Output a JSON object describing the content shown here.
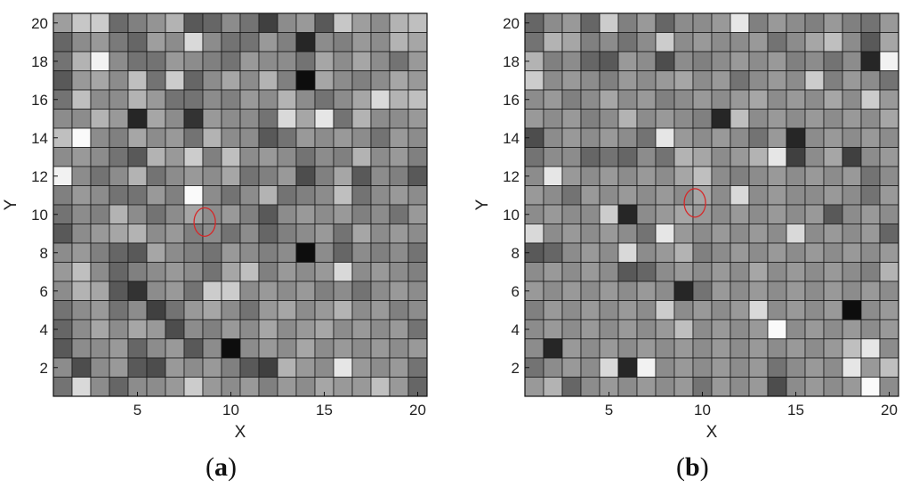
{
  "chart_data": [
    {
      "type": "heatmap",
      "panel_label": "a",
      "xlabel": "X",
      "ylabel": "Y",
      "xlim": [
        1,
        20
      ],
      "ylim": [
        1,
        20
      ],
      "x_ticks": [
        "5",
        "10",
        "15",
        "20"
      ],
      "y_ticks": [
        "2",
        "4",
        "6",
        "8",
        "10",
        "12",
        "14",
        "16",
        "18",
        "20"
      ],
      "colormap": "gray",
      "grid": true,
      "marker": {
        "shape": "circle",
        "color": "#d62728",
        "x": 8.6,
        "y": 9.6
      },
      "rows_top_to_bottom": [
        [
          0.62,
          0.78,
          0.8,
          0.42,
          0.5,
          0.58,
          0.7,
          0.35,
          0.4,
          0.55,
          0.45,
          0.25,
          0.55,
          0.6,
          0.35,
          0.78,
          0.62,
          0.55,
          0.7,
          0.75
        ],
        [
          0.4,
          0.55,
          0.6,
          0.48,
          0.4,
          0.62,
          0.55,
          0.85,
          0.55,
          0.45,
          0.45,
          0.6,
          0.5,
          0.15,
          0.55,
          0.5,
          0.6,
          0.55,
          0.7,
          0.65
        ],
        [
          0.45,
          0.7,
          0.95,
          0.55,
          0.45,
          0.45,
          0.6,
          0.55,
          0.5,
          0.45,
          0.6,
          0.55,
          0.55,
          0.45,
          0.65,
          0.55,
          0.65,
          0.55,
          0.45,
          0.6
        ],
        [
          0.35,
          0.6,
          0.65,
          0.55,
          0.75,
          0.45,
          0.8,
          0.4,
          0.55,
          0.65,
          0.55,
          0.7,
          0.5,
          0.05,
          0.65,
          0.55,
          0.5,
          0.55,
          0.65,
          0.6
        ],
        [
          0.45,
          0.75,
          0.55,
          0.55,
          0.7,
          0.6,
          0.45,
          0.45,
          0.55,
          0.5,
          0.6,
          0.55,
          0.7,
          0.55,
          0.45,
          0.55,
          0.65,
          0.85,
          0.7,
          0.75
        ],
        [
          0.55,
          0.55,
          0.7,
          0.6,
          0.15,
          0.65,
          0.55,
          0.2,
          0.6,
          0.55,
          0.55,
          0.45,
          0.85,
          0.65,
          0.9,
          0.45,
          0.7,
          0.55,
          0.55,
          0.6
        ],
        [
          0.75,
          0.98,
          0.55,
          0.5,
          0.65,
          0.55,
          0.6,
          0.45,
          0.7,
          0.55,
          0.55,
          0.35,
          0.45,
          0.6,
          0.55,
          0.6,
          0.55,
          0.45,
          0.6,
          0.55
        ],
        [
          0.55,
          0.6,
          0.55,
          0.45,
          0.35,
          0.7,
          0.6,
          0.8,
          0.5,
          0.75,
          0.55,
          0.6,
          0.55,
          0.45,
          0.55,
          0.5,
          0.7,
          0.55,
          0.6,
          0.5
        ],
        [
          0.95,
          0.55,
          0.45,
          0.55,
          0.7,
          0.45,
          0.55,
          0.6,
          0.55,
          0.65,
          0.45,
          0.5,
          0.6,
          0.3,
          0.5,
          0.65,
          0.35,
          0.55,
          0.5,
          0.35
        ],
        [
          0.5,
          0.6,
          0.55,
          0.45,
          0.45,
          0.6,
          0.5,
          0.98,
          0.55,
          0.45,
          0.55,
          0.7,
          0.45,
          0.5,
          0.55,
          0.75,
          0.45,
          0.55,
          0.6,
          0.55
        ],
        [
          0.45,
          0.55,
          0.5,
          0.7,
          0.55,
          0.45,
          0.55,
          0.65,
          0.55,
          0.6,
          0.5,
          0.35,
          0.55,
          0.6,
          0.55,
          0.6,
          0.5,
          0.55,
          0.45,
          0.6
        ],
        [
          0.35,
          0.55,
          0.6,
          0.65,
          0.7,
          0.55,
          0.6,
          0.5,
          0.55,
          0.45,
          0.55,
          0.4,
          0.5,
          0.55,
          0.6,
          0.45,
          0.65,
          0.55,
          0.6,
          0.55
        ],
        [
          0.55,
          0.6,
          0.5,
          0.4,
          0.35,
          0.65,
          0.55,
          0.5,
          0.45,
          0.6,
          0.55,
          0.5,
          0.55,
          0.05,
          0.55,
          0.4,
          0.55,
          0.5,
          0.55,
          0.45
        ],
        [
          0.6,
          0.75,
          0.55,
          0.4,
          0.5,
          0.55,
          0.6,
          0.55,
          0.45,
          0.65,
          0.75,
          0.5,
          0.6,
          0.55,
          0.6,
          0.85,
          0.55,
          0.6,
          0.55,
          0.5
        ],
        [
          0.55,
          0.7,
          0.65,
          0.35,
          0.2,
          0.55,
          0.6,
          0.45,
          0.8,
          0.8,
          0.55,
          0.6,
          0.55,
          0.6,
          0.5,
          0.55,
          0.45,
          0.55,
          0.6,
          0.55
        ],
        [
          0.45,
          0.55,
          0.6,
          0.45,
          0.55,
          0.25,
          0.45,
          0.6,
          0.65,
          0.55,
          0.45,
          0.6,
          0.65,
          0.55,
          0.6,
          0.7,
          0.55,
          0.6,
          0.5,
          0.55
        ],
        [
          0.4,
          0.55,
          0.65,
          0.55,
          0.65,
          0.6,
          0.3,
          0.55,
          0.5,
          0.6,
          0.55,
          0.65,
          0.55,
          0.6,
          0.65,
          0.55,
          0.6,
          0.55,
          0.6,
          0.45
        ],
        [
          0.35,
          0.55,
          0.55,
          0.6,
          0.4,
          0.55,
          0.6,
          0.35,
          0.55,
          0.05,
          0.55,
          0.6,
          0.55,
          0.65,
          0.55,
          0.6,
          0.55,
          0.6,
          0.55,
          0.6
        ],
        [
          0.55,
          0.3,
          0.55,
          0.6,
          0.35,
          0.3,
          0.6,
          0.55,
          0.6,
          0.5,
          0.35,
          0.25,
          0.7,
          0.6,
          0.55,
          0.9,
          0.6,
          0.55,
          0.6,
          0.45
        ],
        [
          0.45,
          0.85,
          0.55,
          0.4,
          0.55,
          0.55,
          0.6,
          0.8,
          0.6,
          0.55,
          0.6,
          0.5,
          0.6,
          0.55,
          0.65,
          0.6,
          0.6,
          0.75,
          0.6,
          0.4
        ]
      ]
    },
    {
      "type": "heatmap",
      "panel_label": "b",
      "xlabel": "X",
      "ylabel": "Y",
      "xlim": [
        1,
        20
      ],
      "ylim": [
        1,
        20
      ],
      "x_ticks": [
        "5",
        "10",
        "15",
        "20"
      ],
      "y_ticks": [
        "2",
        "4",
        "6",
        "8",
        "10",
        "12",
        "14",
        "16",
        "18",
        "20"
      ],
      "colormap": "gray",
      "grid": true,
      "marker": {
        "shape": "circle",
        "color": "#d62728",
        "x": 9.6,
        "y": 10.6
      },
      "rows_top_to_bottom": [
        [
          0.4,
          0.55,
          0.6,
          0.4,
          0.8,
          0.5,
          0.6,
          0.4,
          0.55,
          0.55,
          0.6,
          0.9,
          0.5,
          0.6,
          0.55,
          0.5,
          0.6,
          0.5,
          0.45,
          0.6
        ],
        [
          0.45,
          0.7,
          0.65,
          0.5,
          0.55,
          0.45,
          0.55,
          0.8,
          0.55,
          0.6,
          0.55,
          0.55,
          0.6,
          0.45,
          0.55,
          0.65,
          0.75,
          0.55,
          0.35,
          0.65
        ],
        [
          0.7,
          0.5,
          0.55,
          0.4,
          0.35,
          0.6,
          0.55,
          0.3,
          0.55,
          0.5,
          0.55,
          0.6,
          0.55,
          0.6,
          0.5,
          0.55,
          0.45,
          0.55,
          0.15,
          0.95
        ],
        [
          0.8,
          0.55,
          0.6,
          0.55,
          0.5,
          0.6,
          0.55,
          0.6,
          0.65,
          0.55,
          0.6,
          0.45,
          0.55,
          0.6,
          0.55,
          0.8,
          0.5,
          0.6,
          0.55,
          0.45
        ],
        [
          0.55,
          0.6,
          0.5,
          0.55,
          0.65,
          0.55,
          0.6,
          0.5,
          0.55,
          0.6,
          0.55,
          0.6,
          0.65,
          0.55,
          0.6,
          0.55,
          0.65,
          0.55,
          0.8,
          0.6
        ],
        [
          0.6,
          0.55,
          0.6,
          0.5,
          0.55,
          0.7,
          0.55,
          0.6,
          0.55,
          0.5,
          0.15,
          0.75,
          0.55,
          0.6,
          0.55,
          0.6,
          0.55,
          0.6,
          0.55,
          0.65
        ],
        [
          0.3,
          0.55,
          0.6,
          0.55,
          0.6,
          0.55,
          0.45,
          0.9,
          0.6,
          0.55,
          0.6,
          0.55,
          0.45,
          0.6,
          0.15,
          0.55,
          0.6,
          0.55,
          0.6,
          0.55
        ],
        [
          0.45,
          0.55,
          0.55,
          0.4,
          0.45,
          0.4,
          0.55,
          0.45,
          0.7,
          0.65,
          0.55,
          0.6,
          0.7,
          0.9,
          0.25,
          0.55,
          0.65,
          0.25,
          0.55,
          0.6
        ],
        [
          0.55,
          0.9,
          0.6,
          0.55,
          0.6,
          0.55,
          0.6,
          0.55,
          0.65,
          0.75,
          0.55,
          0.5,
          0.55,
          0.6,
          0.55,
          0.6,
          0.55,
          0.6,
          0.45,
          0.55
        ],
        [
          0.6,
          0.55,
          0.45,
          0.6,
          0.55,
          0.6,
          0.55,
          0.6,
          0.55,
          0.65,
          0.55,
          0.85,
          0.55,
          0.6,
          0.55,
          0.55,
          0.6,
          0.55,
          0.45,
          0.6
        ],
        [
          0.55,
          0.6,
          0.55,
          0.55,
          0.8,
          0.15,
          0.55,
          0.6,
          0.65,
          0.6,
          0.55,
          0.6,
          0.55,
          0.6,
          0.55,
          0.6,
          0.35,
          0.55,
          0.6,
          0.55
        ],
        [
          0.85,
          0.55,
          0.6,
          0.55,
          0.6,
          0.55,
          0.45,
          0.9,
          0.6,
          0.55,
          0.6,
          0.55,
          0.6,
          0.55,
          0.85,
          0.55,
          0.6,
          0.55,
          0.6,
          0.4
        ],
        [
          0.35,
          0.4,
          0.55,
          0.6,
          0.55,
          0.85,
          0.55,
          0.6,
          0.7,
          0.5,
          0.55,
          0.6,
          0.55,
          0.6,
          0.55,
          0.6,
          0.55,
          0.6,
          0.55,
          0.6
        ],
        [
          0.55,
          0.6,
          0.55,
          0.6,
          0.55,
          0.35,
          0.4,
          0.55,
          0.6,
          0.55,
          0.6,
          0.55,
          0.65,
          0.55,
          0.6,
          0.55,
          0.6,
          0.55,
          0.5,
          0.7
        ],
        [
          0.6,
          0.55,
          0.6,
          0.55,
          0.6,
          0.55,
          0.6,
          0.55,
          0.15,
          0.45,
          0.6,
          0.55,
          0.6,
          0.55,
          0.6,
          0.55,
          0.6,
          0.55,
          0.6,
          0.55
        ],
        [
          0.5,
          0.6,
          0.55,
          0.6,
          0.55,
          0.6,
          0.55,
          0.8,
          0.55,
          0.6,
          0.55,
          0.6,
          0.85,
          0.55,
          0.6,
          0.55,
          0.6,
          0.05,
          0.55,
          0.6
        ],
        [
          0.55,
          0.6,
          0.55,
          0.6,
          0.55,
          0.6,
          0.55,
          0.6,
          0.75,
          0.55,
          0.6,
          0.55,
          0.6,
          0.98,
          0.55,
          0.6,
          0.55,
          0.6,
          0.55,
          0.6
        ],
        [
          0.55,
          0.15,
          0.6,
          0.55,
          0.6,
          0.55,
          0.6,
          0.55,
          0.6,
          0.55,
          0.6,
          0.55,
          0.6,
          0.55,
          0.6,
          0.55,
          0.6,
          0.75,
          0.9,
          0.55
        ],
        [
          0.45,
          0.55,
          0.6,
          0.55,
          0.85,
          0.15,
          0.95,
          0.55,
          0.6,
          0.55,
          0.6,
          0.55,
          0.6,
          0.45,
          0.55,
          0.6,
          0.55,
          0.9,
          0.6,
          0.75
        ],
        [
          0.6,
          0.7,
          0.4,
          0.55,
          0.6,
          0.55,
          0.6,
          0.55,
          0.6,
          0.45,
          0.6,
          0.55,
          0.6,
          0.3,
          0.55,
          0.6,
          0.55,
          0.6,
          0.98,
          0.55
        ]
      ]
    }
  ]
}
